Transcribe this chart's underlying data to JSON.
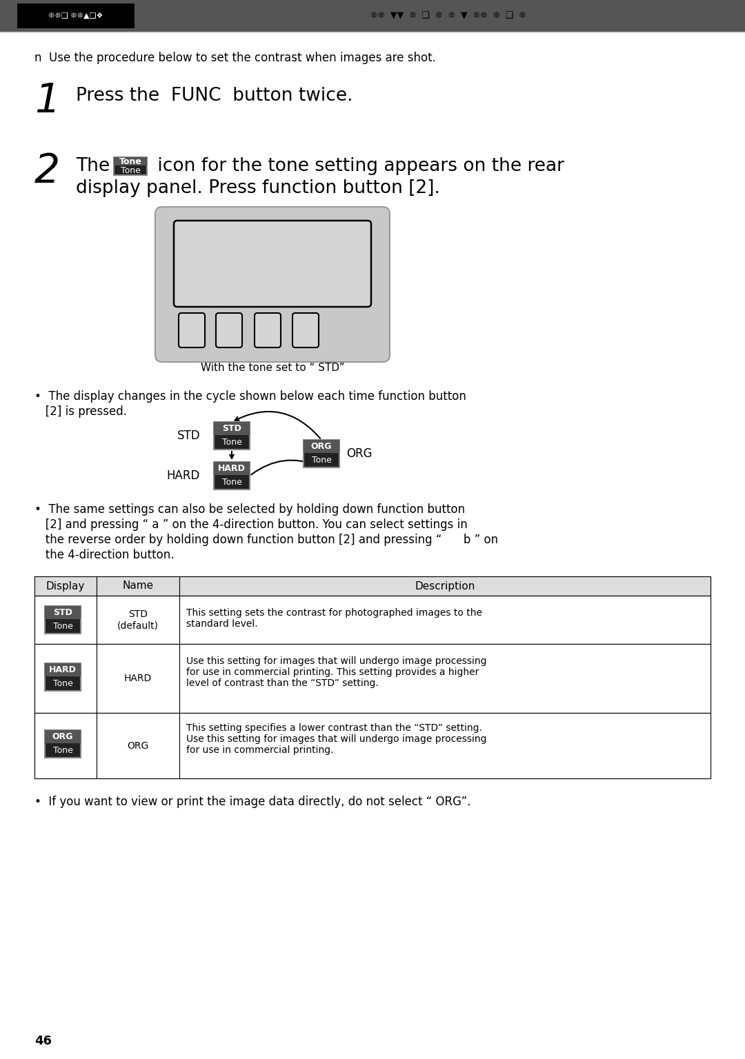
{
  "bg_color": "#ffffff",
  "header_bg": "#555555",
  "page_number": "46",
  "intro_text": "n  Use the procedure below to set the contrast when images are shot.",
  "step1_text": "Press the  FUNC  button twice.",
  "step2_line1": " icon for the tone setting appears on the rear",
  "step2_line2": "display panel. Press function button [2].",
  "caption": "With the tone set to “ STD”",
  "bullet1_line1": "•  The display changes in the cycle shown below each time function button",
  "bullet1_line2": "   [2] is pressed.",
  "std_label": "STD",
  "hard_label": "HARD",
  "org_label": "ORG",
  "bullet2_line1": "•  The same settings can also be selected by holding down function button",
  "bullet2_line2": "   [2] and pressing “ a ” on the 4-direction button. You can select settings in",
  "bullet2_line3": "   the reverse order by holding down function button [2] and pressing “      b ” on",
  "bullet2_line4": "   the 4-direction button.",
  "table_headers": [
    "Display",
    "Name",
    "Description"
  ],
  "table_row1_name": "STD\n(default)",
  "table_row1_desc": "This setting sets the contrast for photographed images to the\nstandard level.",
  "table_row2_name": "HARD",
  "table_row2_desc": "Use this setting for images that will undergo image processing\nfor use in commercial printing. This setting provides a higher\nlevel of contrast than the “STD” setting.",
  "table_row3_name": "ORG",
  "table_row3_desc": "This setting specifies a lower contrast than the “STD” setting.\nUse this setting for images that will undergo image processing\nfor use in commercial printing.",
  "footer_note": "•  If you want to view or print the image data directly, do not select “ ORG”."
}
